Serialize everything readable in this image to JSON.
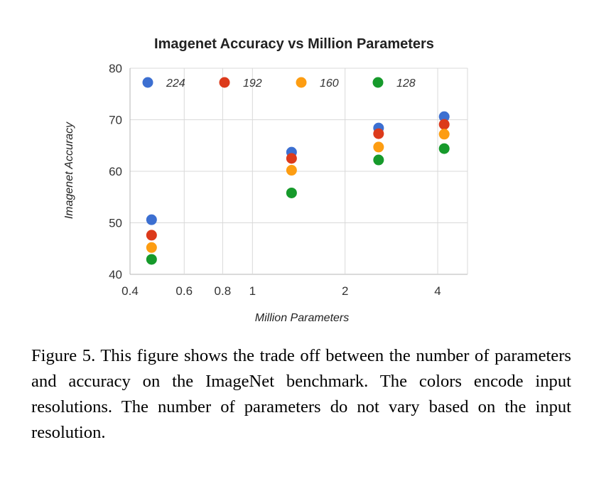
{
  "chart_data": {
    "type": "scatter",
    "title": "Imagenet Accuracy vs Million Parameters",
    "xlabel": "Million Parameters",
    "ylabel": "Imagenet Accuracy",
    "x_scale": "log",
    "xlim": [
      0.4,
      5.0
    ],
    "ylim": [
      40,
      80
    ],
    "x_ticks": [
      0.4,
      0.6,
      0.8,
      1,
      2,
      4
    ],
    "x_tick_labels": [
      "0.4",
      "0.6",
      "0.8",
      "1",
      "2",
      "4"
    ],
    "y_ticks": [
      40,
      50,
      60,
      70,
      80
    ],
    "y_tick_labels": [
      "40",
      "50",
      "60",
      "70",
      "80"
    ],
    "grid": true,
    "legend_position": "top",
    "x": [
      0.47,
      1.34,
      2.57,
      4.2
    ],
    "series": [
      {
        "name": "224",
        "color": "#3c6fd1",
        "values": [
          50.6,
          63.7,
          68.4,
          70.6
        ]
      },
      {
        "name": "192",
        "color": "#dc3a1b",
        "values": [
          47.6,
          62.5,
          67.3,
          69.1
        ]
      },
      {
        "name": "160",
        "color": "#fd9d12",
        "values": [
          45.2,
          60.2,
          64.7,
          67.2
        ]
      },
      {
        "name": "128",
        "color": "#169a2b",
        "values": [
          42.9,
          55.8,
          62.2,
          64.4
        ]
      }
    ]
  },
  "caption": "Figure 5. This figure shows the trade off between the number of parameters and accuracy on the ImageNet benchmark. The colors encode input resolutions. The number of parameters do not vary based on the input resolution."
}
